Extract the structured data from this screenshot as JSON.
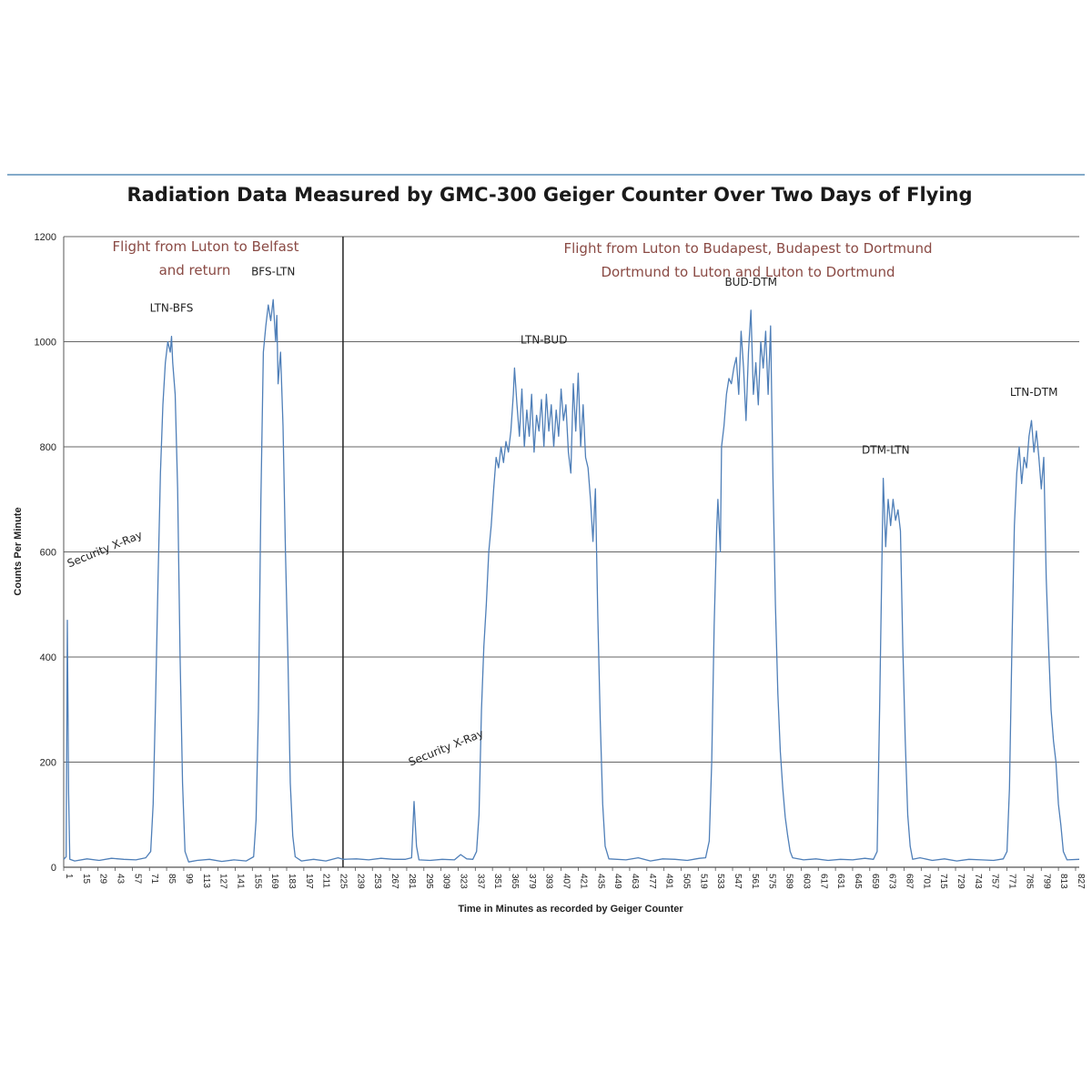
{
  "chart_data": {
    "type": "line",
    "title": "Radiation Data Measured by GMC-300 Geiger Counter Over Two Days of Flying",
    "xlabel": "Time in Minutes as recorded by Geiger Counter",
    "ylabel": "Counts Per Minute",
    "ylim": [
      0,
      1200
    ],
    "xlim": [
      1,
      830
    ],
    "grid": true,
    "y_ticks": [
      "0",
      "200",
      "400",
      "600",
      "800",
      "1000",
      "1200"
    ],
    "x_tick_labels": [
      "1",
      "15",
      "29",
      "43",
      "57",
      "71",
      "85",
      "99",
      "113",
      "127",
      "141",
      "155",
      "169",
      "183",
      "197",
      "211",
      "225",
      "239",
      "253",
      "267",
      "281",
      "295",
      "309",
      "323",
      "337",
      "351",
      "365",
      "379",
      "393",
      "407",
      "421",
      "435",
      "449",
      "463",
      "477",
      "491",
      "505",
      "519",
      "533",
      "547",
      "561",
      "575",
      "589",
      "603",
      "617",
      "631",
      "645",
      "659",
      "673",
      "687",
      "701",
      "715",
      "729",
      "743",
      "757",
      "771",
      "785",
      "799",
      "813",
      "827"
    ],
    "divider_x": 229,
    "series": [
      {
        "color": "#4f7fb8",
        "points": [
          [
            1,
            15
          ],
          [
            3,
            20
          ],
          [
            4,
            470
          ],
          [
            5,
            140
          ],
          [
            6,
            15
          ],
          [
            10,
            12
          ],
          [
            20,
            16
          ],
          [
            30,
            13
          ],
          [
            40,
            17
          ],
          [
            50,
            15
          ],
          [
            60,
            14
          ],
          [
            68,
            18
          ],
          [
            72,
            30
          ],
          [
            74,
            120
          ],
          [
            76,
            320
          ],
          [
            78,
            550
          ],
          [
            80,
            750
          ],
          [
            82,
            880
          ],
          [
            84,
            960
          ],
          [
            86,
            1000
          ],
          [
            88,
            980
          ],
          [
            89,
            1010
          ],
          [
            90,
            960
          ],
          [
            92,
            900
          ],
          [
            94,
            720
          ],
          [
            96,
            400
          ],
          [
            98,
            160
          ],
          [
            100,
            30
          ],
          [
            103,
            10
          ],
          [
            110,
            13
          ],
          [
            120,
            15
          ],
          [
            130,
            11
          ],
          [
            140,
            14
          ],
          [
            150,
            12
          ],
          [
            156,
            20
          ],
          [
            158,
            90
          ],
          [
            160,
            300
          ],
          [
            162,
            700
          ],
          [
            164,
            980
          ],
          [
            166,
            1030
          ],
          [
            168,
            1070
          ],
          [
            170,
            1040
          ],
          [
            172,
            1080
          ],
          [
            174,
            1000
          ],
          [
            175,
            1050
          ],
          [
            176,
            920
          ],
          [
            178,
            980
          ],
          [
            180,
            840
          ],
          [
            182,
            600
          ],
          [
            184,
            400
          ],
          [
            186,
            160
          ],
          [
            188,
            60
          ],
          [
            190,
            20
          ],
          [
            195,
            12
          ],
          [
            205,
            15
          ],
          [
            215,
            12
          ],
          [
            225,
            18
          ],
          [
            229,
            15
          ],
          [
            240,
            16
          ],
          [
            250,
            14
          ],
          [
            260,
            17
          ],
          [
            270,
            15
          ],
          [
            280,
            15
          ],
          [
            285,
            18
          ],
          [
            287,
            125
          ],
          [
            289,
            40
          ],
          [
            291,
            14
          ],
          [
            300,
            13
          ],
          [
            310,
            15
          ],
          [
            320,
            14
          ],
          [
            325,
            24
          ],
          [
            330,
            16
          ],
          [
            335,
            15
          ],
          [
            338,
            30
          ],
          [
            340,
            100
          ],
          [
            342,
            300
          ],
          [
            344,
            420
          ],
          [
            346,
            500
          ],
          [
            348,
            600
          ],
          [
            350,
            650
          ],
          [
            352,
            720
          ],
          [
            354,
            780
          ],
          [
            356,
            760
          ],
          [
            358,
            800
          ],
          [
            360,
            770
          ],
          [
            362,
            810
          ],
          [
            364,
            790
          ],
          [
            366,
            830
          ],
          [
            368,
            900
          ],
          [
            369,
            950
          ],
          [
            371,
            880
          ],
          [
            373,
            820
          ],
          [
            375,
            910
          ],
          [
            377,
            800
          ],
          [
            379,
            870
          ],
          [
            381,
            820
          ],
          [
            383,
            900
          ],
          [
            385,
            790
          ],
          [
            387,
            860
          ],
          [
            389,
            830
          ],
          [
            391,
            890
          ],
          [
            393,
            800
          ],
          [
            395,
            900
          ],
          [
            397,
            830
          ],
          [
            399,
            880
          ],
          [
            401,
            800
          ],
          [
            403,
            870
          ],
          [
            405,
            820
          ],
          [
            407,
            910
          ],
          [
            409,
            850
          ],
          [
            411,
            880
          ],
          [
            413,
            790
          ],
          [
            415,
            750
          ],
          [
            417,
            920
          ],
          [
            419,
            830
          ],
          [
            421,
            940
          ],
          [
            423,
            800
          ],
          [
            425,
            880
          ],
          [
            427,
            780
          ],
          [
            429,
            760
          ],
          [
            431,
            700
          ],
          [
            433,
            620
          ],
          [
            435,
            720
          ],
          [
            437,
            480
          ],
          [
            439,
            280
          ],
          [
            441,
            120
          ],
          [
            443,
            40
          ],
          [
            446,
            16
          ],
          [
            460,
            14
          ],
          [
            470,
            18
          ],
          [
            480,
            12
          ],
          [
            490,
            16
          ],
          [
            500,
            15
          ],
          [
            510,
            13
          ],
          [
            520,
            17
          ],
          [
            525,
            18
          ],
          [
            528,
            50
          ],
          [
            530,
            200
          ],
          [
            532,
            460
          ],
          [
            534,
            640
          ],
          [
            535,
            700
          ],
          [
            537,
            600
          ],
          [
            538,
            800
          ],
          [
            540,
            840
          ],
          [
            542,
            900
          ],
          [
            544,
            930
          ],
          [
            546,
            920
          ],
          [
            548,
            950
          ],
          [
            550,
            970
          ],
          [
            552,
            900
          ],
          [
            554,
            1020
          ],
          [
            556,
            950
          ],
          [
            558,
            850
          ],
          [
            560,
            980
          ],
          [
            562,
            1060
          ],
          [
            564,
            900
          ],
          [
            566,
            960
          ],
          [
            568,
            880
          ],
          [
            570,
            1000
          ],
          [
            572,
            950
          ],
          [
            574,
            1020
          ],
          [
            576,
            900
          ],
          [
            578,
            1030
          ],
          [
            580,
            740
          ],
          [
            582,
            500
          ],
          [
            584,
            330
          ],
          [
            586,
            220
          ],
          [
            588,
            150
          ],
          [
            590,
            95
          ],
          [
            592,
            60
          ],
          [
            594,
            30
          ],
          [
            596,
            18
          ],
          [
            605,
            14
          ],
          [
            615,
            16
          ],
          [
            625,
            13
          ],
          [
            635,
            15
          ],
          [
            645,
            14
          ],
          [
            655,
            17
          ],
          [
            662,
            15
          ],
          [
            665,
            30
          ],
          [
            667,
            300
          ],
          [
            669,
            600
          ],
          [
            670,
            740
          ],
          [
            672,
            610
          ],
          [
            674,
            700
          ],
          [
            676,
            650
          ],
          [
            678,
            700
          ],
          [
            680,
            660
          ],
          [
            682,
            680
          ],
          [
            684,
            640
          ],
          [
            686,
            420
          ],
          [
            688,
            240
          ],
          [
            690,
            100
          ],
          [
            692,
            40
          ],
          [
            694,
            15
          ],
          [
            700,
            18
          ],
          [
            710,
            13
          ],
          [
            720,
            16
          ],
          [
            730,
            12
          ],
          [
            740,
            15
          ],
          [
            750,
            14
          ],
          [
            760,
            13
          ],
          [
            768,
            16
          ],
          [
            771,
            30
          ],
          [
            773,
            150
          ],
          [
            775,
            420
          ],
          [
            777,
            650
          ],
          [
            779,
            750
          ],
          [
            781,
            800
          ],
          [
            783,
            730
          ],
          [
            785,
            780
          ],
          [
            787,
            760
          ],
          [
            789,
            820
          ],
          [
            791,
            850
          ],
          [
            793,
            790
          ],
          [
            795,
            830
          ],
          [
            797,
            780
          ],
          [
            799,
            720
          ],
          [
            801,
            780
          ],
          [
            803,
            550
          ],
          [
            805,
            420
          ],
          [
            807,
            300
          ],
          [
            809,
            240
          ],
          [
            811,
            200
          ],
          [
            813,
            120
          ],
          [
            815,
            80
          ],
          [
            817,
            30
          ],
          [
            820,
            14
          ],
          [
            830,
            15
          ]
        ]
      }
    ],
    "region_labels": [
      {
        "lines": [
          "Flight  from Luton to Belfast",
          "and return"
        ]
      },
      {
        "lines": [
          "Flight from Luton to Budapest, Budapest to Dortmund",
          "Dortmund to Luton and Luton to Dortmund"
        ]
      }
    ],
    "flight_labels": [
      {
        "text": "LTN-BFS",
        "x": 89,
        "y": 1010
      },
      {
        "text": "BFS-LTN",
        "x": 172,
        "y": 1080
      },
      {
        "text": "LTN-BUD",
        "x": 393,
        "y": 950
      },
      {
        "text": "BUD-DTM",
        "x": 562,
        "y": 1060
      },
      {
        "text": "DTM-LTN",
        "x": 672,
        "y": 740
      },
      {
        "text": "LTN-DTM",
        "x": 793,
        "y": 850
      }
    ],
    "annotations": [
      {
        "text": "Security X-Ray",
        "x": 4,
        "y": 470
      },
      {
        "text": "Security X-Ray",
        "x": 287,
        "y": 125
      }
    ]
  }
}
